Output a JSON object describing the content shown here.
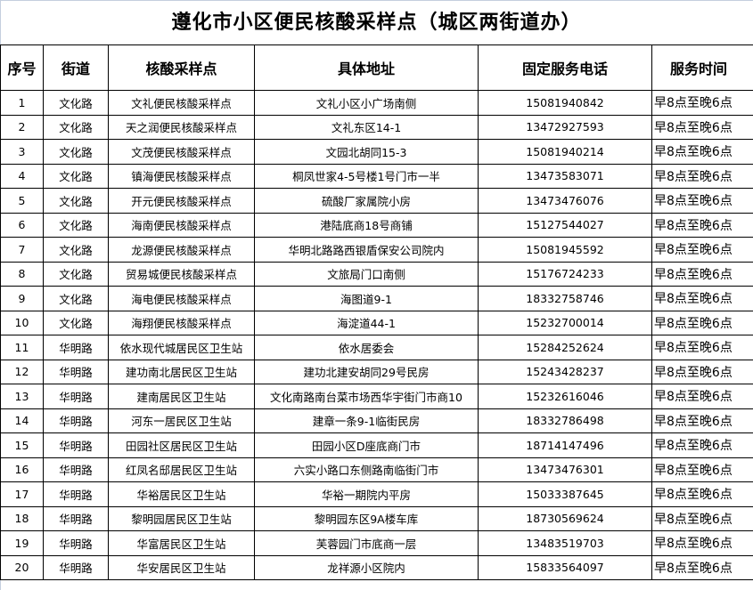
{
  "title": "遵化市小区便民核酸采样点（城区两街道办）",
  "headers": [
    "序号",
    "街道",
    "核酸采样点",
    "具体地址",
    "固定服务电话",
    "服务时间"
  ],
  "rows": [
    [
      "1",
      "文化路",
      "文礼便民核酸采样点",
      "文礼小区小广场南侧",
      "15081940842",
      "早8点至晚6点"
    ],
    [
      "2",
      "文化路",
      "天之润便民核酸采样点",
      "文礼东区14-1",
      "13472927593",
      "早8点至晚6点"
    ],
    [
      "3",
      "文化路",
      "文茂便民核酸采样点",
      "文园北胡同15-3",
      "15081940214",
      "早8点至晚6点"
    ],
    [
      "4",
      "文化路",
      "镇海便民核酸采样点",
      "桐凤世家4-5号楼1号门市一半",
      "13473583071",
      "早8点至晚6点"
    ],
    [
      "5",
      "文化路",
      "开元便民核酸采样点",
      "硫酸厂家属院小房",
      "13473476076",
      "早8点至晚6点"
    ],
    [
      "6",
      "文化路",
      "海南便民核酸采样点",
      "港陆底商18号商铺",
      "15127544027",
      "早8点至晚6点"
    ],
    [
      "7",
      "文化路",
      "龙源便民核酸采样点",
      "华明北路路西银盾保安公司院内",
      "15081945592",
      "早8点至晚6点"
    ],
    [
      "8",
      "文化路",
      "贸易城便民核酸采样点",
      "文旅局门口南侧",
      "15176724233",
      "早8点至晚6点"
    ],
    [
      "9",
      "文化路",
      "海电便民核酸采样点",
      "海图道9-1",
      "18332758746",
      "早8点至晚6点"
    ],
    [
      "10",
      "文化路",
      "海翔便民核酸采样点",
      "海淀道44-1",
      "15232700014",
      "早8点至晚6点"
    ],
    [
      "11",
      "华明路",
      "依水现代城居民区卫生站",
      "依水居委会",
      "15284252624",
      "早8点至晚6点"
    ],
    [
      "12",
      "华明路",
      "建功南北居民区卫生站",
      "建功北建安胡同29号民房",
      "15243428237",
      "早8点至晚6点"
    ],
    [
      "13",
      "华明路",
      "建南居民区卫生站",
      "文化南路南台菜市场西华宇街门市商10",
      "15232616046",
      "早8点至晚6点"
    ],
    [
      "14",
      "华明路",
      "河东一居民区卫生站",
      "建章一条9-1临街民房",
      "18332786498",
      "早8点至晚6点"
    ],
    [
      "15",
      "华明路",
      "田园社区居民区卫生站",
      "田园小区D座底商门市",
      "18714147496",
      "早8点至晚6点"
    ],
    [
      "16",
      "华明路",
      "红凤名邸居民区卫生站",
      "六实小路口东侧路南临街门市",
      "13473476301",
      "早8点至晚6点"
    ],
    [
      "17",
      "华明路",
      "华裕居民区卫生站",
      "华裕一期院内平房",
      "15033387645",
      "早8点至晚6点"
    ],
    [
      "18",
      "华明路",
      "黎明园居民区卫生站",
      "黎明园东区9A楼车库",
      "18730569624",
      "早8点至晚6点"
    ],
    [
      "19",
      "华明路",
      "华富居民区卫生站",
      "芙蓉园门市底商一层",
      "13483519703",
      "早8点至晚6点"
    ],
    [
      "20",
      "华明路",
      "华安居民区卫生站",
      "龙祥源小区院内",
      "15833564097",
      "早8点至晚6点"
    ]
  ]
}
